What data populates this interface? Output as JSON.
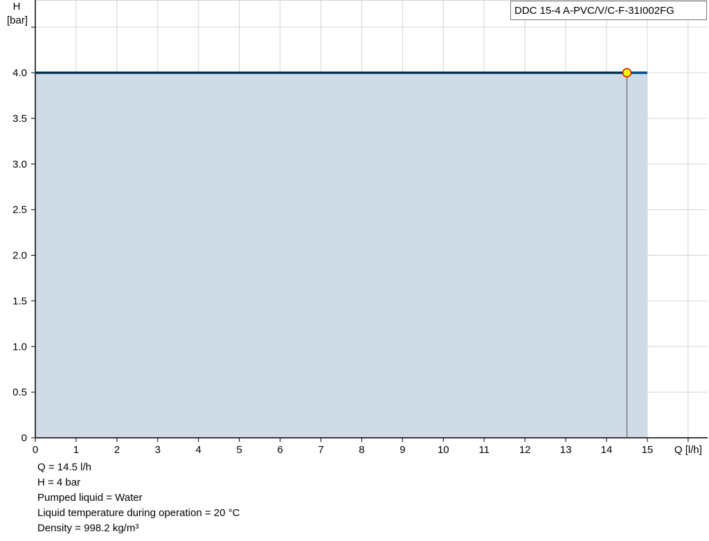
{
  "chart_data": {
    "type": "line",
    "title": "DDC 15-4 A-PVC/V/C-F-31I002FG",
    "xlabel": "Q [l/h]",
    "ylabel_line1": "H",
    "ylabel_line2": "[bar]",
    "xlim": [
      0,
      16.5
    ],
    "ylim": [
      0,
      4.8
    ],
    "xticks": [
      0,
      1,
      2,
      3,
      4,
      5,
      6,
      7,
      8,
      9,
      10,
      11,
      12,
      13,
      14,
      15
    ],
    "yticks": [
      "0",
      "0.5",
      "1.0",
      "1.5",
      "2.0",
      "2.5",
      "3.0",
      "3.5",
      "4.0"
    ],
    "ytick_values": [
      0,
      0.5,
      1,
      1.5,
      2,
      2.5,
      3,
      3.5,
      4,
      4.5
    ],
    "grid": true,
    "series": [
      {
        "x": [
          0,
          15
        ],
        "y": [
          4,
          4
        ],
        "color": "#004b87",
        "fill": "#cfdbe7"
      }
    ],
    "operating_point": {
      "x": 14.5,
      "y": 4,
      "color": "#ffff00",
      "stroke": "#e00000"
    }
  },
  "info": [
    "Q = 14.5 l/h",
    "H = 4 bar",
    "Pumped liquid = Water",
    "Liquid temperature during operation = 20 °C",
    "Density = 998.2 kg/m³"
  ]
}
